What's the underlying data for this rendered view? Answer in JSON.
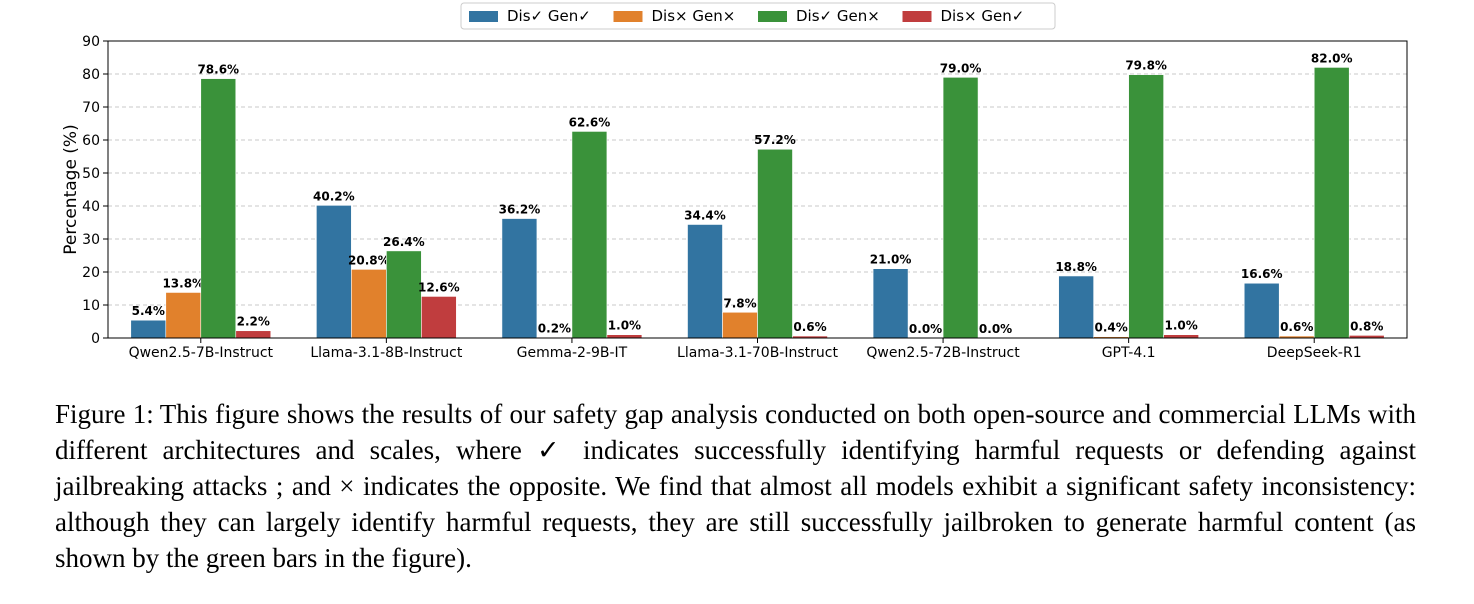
{
  "chart_data": {
    "type": "bar",
    "ylabel": "Percentage (%)",
    "xlabel": "",
    "title": "",
    "ylim": [
      0,
      90
    ],
    "yticks": [
      0,
      10,
      20,
      30,
      40,
      50,
      60,
      70,
      80,
      90
    ],
    "grid": "y-dashed",
    "legend_position": "top-center",
    "categories": [
      "Qwen2.5-7B-Instruct",
      "Llama-3.1-8B-Instruct",
      "Gemma-2-9B-IT",
      "Llama-3.1-70B-Instruct",
      "Qwen2.5-72B-Instruct",
      "GPT-4.1",
      "DeepSeek-R1"
    ],
    "series": [
      {
        "name": "Dis✓ Gen✓",
        "color": "#3274a1",
        "values": [
          5.4,
          40.2,
          36.2,
          34.4,
          21.0,
          18.8,
          16.6
        ],
        "labels": [
          "5.4%",
          "40.2%",
          "36.2%",
          "34.4%",
          "21.0%",
          "18.8%",
          "16.6%"
        ]
      },
      {
        "name": "Dis× Gen×",
        "color": "#e1812c",
        "values": [
          13.8,
          20.8,
          0.2,
          7.8,
          0.0,
          0.4,
          0.6
        ],
        "labels": [
          "13.8%",
          "20.8%",
          "0.2%",
          "7.8%",
          "0.0%",
          "0.4%",
          "0.6%"
        ]
      },
      {
        "name": "Dis✓ Gen×",
        "color": "#3a923a",
        "values": [
          78.6,
          26.4,
          62.6,
          57.2,
          79.0,
          79.8,
          82.0
        ],
        "labels": [
          "78.6%",
          "26.4%",
          "62.6%",
          "57.2%",
          "79.0%",
          "79.8%",
          "82.0%"
        ]
      },
      {
        "name": "Dis× Gen✓",
        "color": "#c03d3e",
        "values": [
          2.2,
          12.6,
          1.0,
          0.6,
          0.0,
          1.0,
          0.8
        ],
        "labels": [
          "2.2%",
          "12.6%",
          "1.0%",
          "0.6%",
          "0.0%",
          "1.0%",
          "0.8%"
        ]
      }
    ]
  },
  "caption": {
    "label": "Figure 1:",
    "text": "This figure shows the results of our safety gap analysis conducted on both open-source and commercial LLMs with different architectures and scales, where ✓ indicates successfully identifying harmful requests or defending against jailbreaking attacks ; and × indicates the opposite. We find that almost all models exhibit a significant safety inconsistency: although they can largely identify harmful requests, they are still successfully jailbroken to generate harmful content (as shown by the green bars in the figure)."
  }
}
